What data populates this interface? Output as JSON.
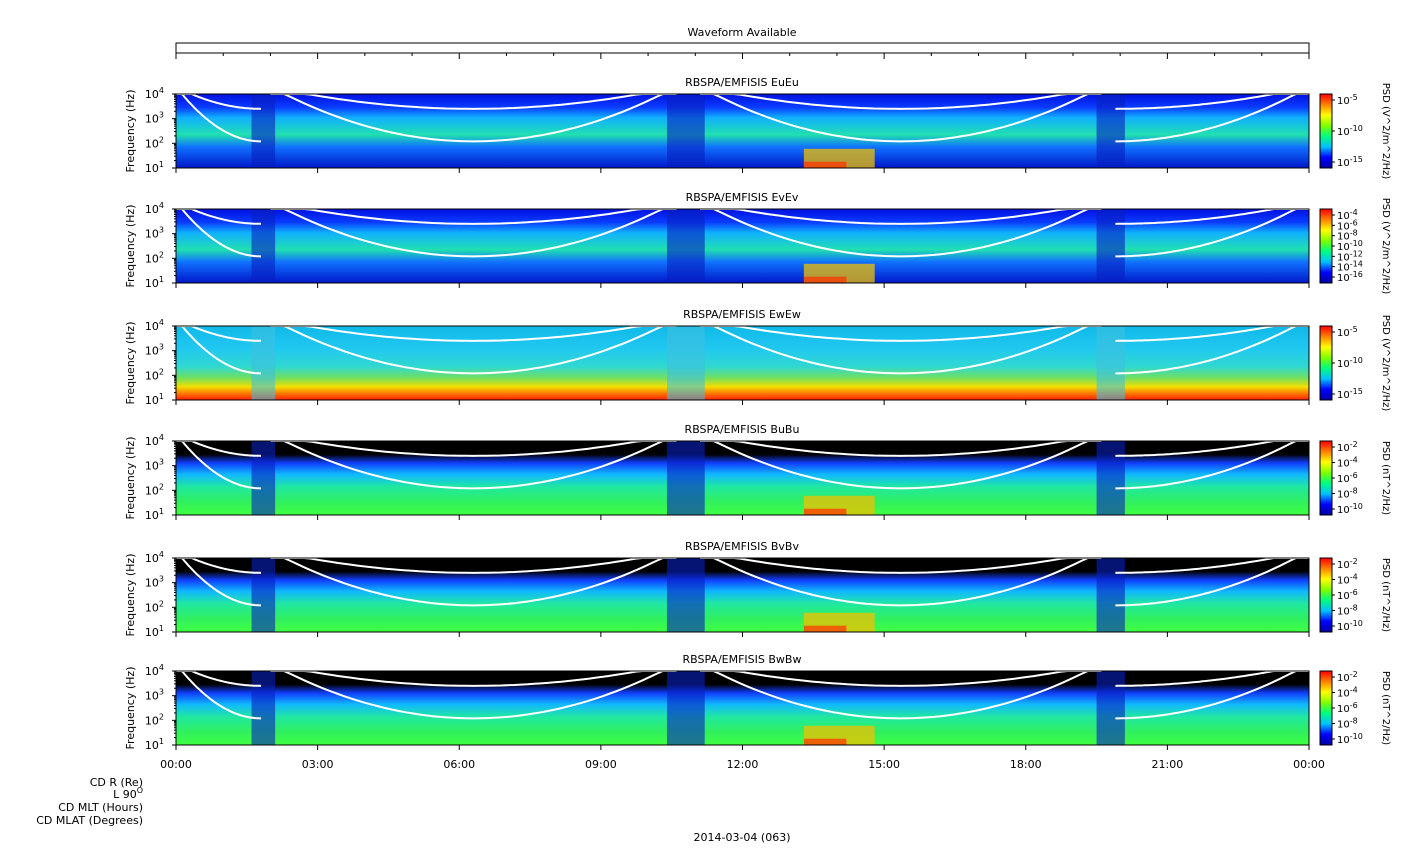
{
  "chart_data": {
    "type": "heatmap",
    "waveform": {
      "title": "Waveform Available"
    },
    "x_ticks": [
      "00:00",
      "03:00",
      "06:00",
      "09:00",
      "12:00",
      "15:00",
      "18:00",
      "21:00",
      "00:00"
    ],
    "xlim_hours": [
      0,
      24
    ],
    "y_ticks": [
      {
        "base": "10",
        "exp": "4",
        "value": 10000
      },
      {
        "base": "10",
        "exp": "3",
        "value": 1000
      },
      {
        "base": "10",
        "exp": "2",
        "value": 100
      },
      {
        "base": "10",
        "exp": "1",
        "value": 10
      }
    ],
    "ylabel": "Frequency (Hz)",
    "ylim": [
      10,
      10000
    ],
    "yscale": "log",
    "panels": [
      {
        "title": "RBSPA/EMFISIS  EuEu",
        "cbar_label": "PSD (V^2/m^2/Hz)",
        "cbar_ticks": [
          {
            "base": "10",
            "exp": "-5"
          },
          {
            "base": "10",
            "exp": "-10"
          },
          {
            "base": "10",
            "exp": "-15"
          }
        ],
        "kind": "E"
      },
      {
        "title": "RBSPA/EMFISIS  EvEv",
        "cbar_label": "PSD (V^2/m^2/Hz)",
        "cbar_ticks": [
          {
            "base": "10",
            "exp": "-4"
          },
          {
            "base": "10",
            "exp": "-6"
          },
          {
            "base": "10",
            "exp": "-8"
          },
          {
            "base": "10",
            "exp": "-10"
          },
          {
            "base": "10",
            "exp": "-12"
          },
          {
            "base": "10",
            "exp": "-14"
          },
          {
            "base": "10",
            "exp": "-16"
          }
        ],
        "kind": "E"
      },
      {
        "title": "RBSPA/EMFISIS  EwEw",
        "cbar_label": "PSD (V^2/m^2/Hz)",
        "cbar_ticks": [
          {
            "base": "10",
            "exp": "-5"
          },
          {
            "base": "10",
            "exp": "-10"
          },
          {
            "base": "10",
            "exp": "-15"
          }
        ],
        "kind": "Ew"
      },
      {
        "title": "RBSPA/EMFISIS  BuBu",
        "cbar_label": "PSD (nT^2/Hz)",
        "cbar_ticks": [
          {
            "base": "10",
            "exp": "-2"
          },
          {
            "base": "10",
            "exp": "-4"
          },
          {
            "base": "10",
            "exp": "-6"
          },
          {
            "base": "10",
            "exp": "-8"
          },
          {
            "base": "10",
            "exp": "-10"
          }
        ],
        "kind": "B"
      },
      {
        "title": "RBSPA/EMFISIS  BvBv",
        "cbar_label": "PSD (nT^2/Hz)",
        "cbar_ticks": [
          {
            "base": "10",
            "exp": "-2"
          },
          {
            "base": "10",
            "exp": "-4"
          },
          {
            "base": "10",
            "exp": "-6"
          },
          {
            "base": "10",
            "exp": "-8"
          },
          {
            "base": "10",
            "exp": "-10"
          }
        ],
        "kind": "B"
      },
      {
        "title": "RBSPA/EMFISIS  BwBw",
        "cbar_label": "PSD (nT^2/Hz)",
        "cbar_ticks": [
          {
            "base": "10",
            "exp": "-2"
          },
          {
            "base": "10",
            "exp": "-4"
          },
          {
            "base": "10",
            "exp": "-6"
          },
          {
            "base": "10",
            "exp": "-8"
          },
          {
            "base": "10",
            "exp": "-10"
          }
        ],
        "kind": "B"
      }
    ],
    "row_labels": [
      "CD R (Re)",
      "L 90",
      "CD MLT (Hours)",
      "CD MLAT (Degrees)"
    ],
    "row_label_superscript": "O",
    "date_label": "2014-03-04 (063)",
    "colorscale": [
      "#0000a0",
      "#0000ff",
      "#00c0ff",
      "#00ff80",
      "#80ff00",
      "#ffff00",
      "#ff8000",
      "#ff0000"
    ]
  }
}
